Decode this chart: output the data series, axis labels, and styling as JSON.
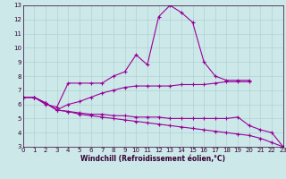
{
  "xlabel": "Windchill (Refroidissement éolien,°C)",
  "x_values": [
    0,
    1,
    2,
    3,
    4,
    5,
    6,
    7,
    8,
    9,
    10,
    11,
    12,
    13,
    14,
    15,
    16,
    17,
    18,
    19,
    20,
    21,
    22,
    23
  ],
  "lines": [
    [
      6.5,
      6.5,
      6.0,
      5.8,
      7.5,
      7.5,
      7.5,
      7.5,
      8.0,
      8.3,
      9.5,
      8.8,
      12.2,
      13.0,
      12.5,
      11.8,
      9.0,
      8.0,
      7.7,
      7.7,
      7.7,
      null,
      null,
      null
    ],
    [
      6.5,
      6.5,
      6.1,
      5.6,
      6.0,
      6.2,
      6.5,
      6.8,
      7.0,
      7.2,
      7.3,
      7.3,
      7.3,
      7.3,
      7.4,
      7.4,
      7.4,
      7.5,
      7.6,
      7.6,
      7.6,
      null,
      null,
      null
    ],
    [
      6.5,
      6.5,
      6.1,
      5.6,
      5.5,
      5.4,
      5.3,
      5.3,
      5.2,
      5.2,
      5.1,
      5.1,
      5.1,
      5.0,
      5.0,
      5.0,
      5.0,
      5.0,
      5.0,
      5.1,
      4.5,
      4.2,
      4.0,
      3.0
    ],
    [
      6.5,
      6.5,
      6.1,
      5.6,
      5.5,
      5.3,
      5.2,
      5.1,
      5.0,
      4.9,
      4.8,
      4.7,
      4.6,
      4.5,
      4.4,
      4.3,
      4.2,
      4.1,
      4.0,
      3.9,
      3.8,
      3.6,
      3.3,
      3.0
    ]
  ],
  "line_color": "#990099",
  "marker": "+",
  "markersize": 3.5,
  "linewidth": 0.8,
  "markeredgewidth": 0.8,
  "background_color": "#cce8e8",
  "grid_color": "#aacccc",
  "tick_color": "#330033",
  "label_color": "#330033",
  "ylim": [
    3,
    13
  ],
  "xlim": [
    0,
    23
  ],
  "yticks": [
    3,
    4,
    5,
    6,
    7,
    8,
    9,
    10,
    11,
    12,
    13
  ],
  "xticks": [
    0,
    1,
    2,
    3,
    4,
    5,
    6,
    7,
    8,
    9,
    10,
    11,
    12,
    13,
    14,
    15,
    16,
    17,
    18,
    19,
    20,
    21,
    22,
    23
  ],
  "tick_fontsize": 5.0,
  "xlabel_fontsize": 5.5
}
